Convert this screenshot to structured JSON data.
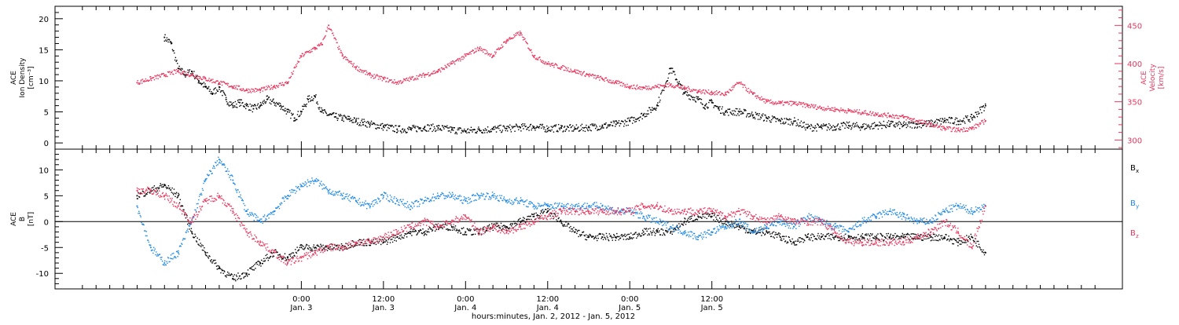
{
  "chart_data": [
    {
      "type": "scatter",
      "panel": "top",
      "left_ylabel_lines": [
        "ACE",
        "Ion Density",
        "[cm⁻³]"
      ],
      "right_ylabel_lines": [
        "ACE",
        "Velocity",
        "[km/s]"
      ],
      "ylim_left": [
        -1,
        22
      ],
      "ylim_right": [
        288,
        475
      ],
      "yticks_left": [
        0,
        5,
        10,
        15,
        20
      ],
      "yticks_right": [
        300,
        350,
        400,
        450
      ],
      "colors": {
        "density": "#000000",
        "velocity": "#e8365d"
      },
      "series": [
        {
          "axis": "left",
          "color": "#000000",
          "x": [
            -20,
            -19,
            -18,
            -17,
            -16,
            -15,
            -14,
            -13,
            -12,
            -11,
            -10,
            -9,
            -8,
            -7,
            -6,
            -5,
            -4,
            -3,
            -2,
            -1,
            0,
            1,
            2,
            3,
            4,
            5,
            6,
            7,
            8,
            9,
            10,
            12,
            14,
            16,
            18,
            20,
            22,
            24,
            26,
            28,
            30,
            32,
            34,
            36,
            38,
            40,
            42,
            44,
            46,
            48,
            50,
            52,
            54,
            56,
            58,
            59,
            60,
            61,
            62,
            64,
            66,
            68,
            70,
            72,
            74,
            76,
            78,
            80,
            82,
            84,
            86,
            88,
            90,
            92,
            94,
            96,
            98,
            100
          ],
          "y": [
            17,
            16,
            12,
            11,
            11.5,
            10,
            9,
            8,
            9,
            7,
            6,
            6.5,
            6,
            5.5,
            6,
            7,
            6.5,
            6,
            5,
            4,
            5,
            7,
            7.5,
            5,
            4.5,
            4.2,
            4.0,
            3.8,
            3.5,
            3.3,
            3.0,
            2.6,
            2.2,
            2.2,
            2.5,
            2.4,
            2.1,
            1.9,
            2.1,
            2.2,
            2.3,
            2.5,
            2.6,
            2.3,
            2.4,
            2.3,
            2.5,
            2.7,
            3.0,
            3.5,
            4.5,
            6.0,
            12.0,
            8.0,
            7.0,
            6.0,
            6.5,
            5.5,
            5.0,
            5.0,
            4.5,
            4.0,
            3.5,
            3.5,
            2.5,
            2.5,
            2.6,
            2.8,
            2.6,
            2.8,
            3.0,
            2.8,
            3.0,
            3.1,
            3.6,
            3.5,
            4.0,
            6.0
          ]
        },
        {
          "axis": "right",
          "color": "#e8365d",
          "x": [
            -24,
            -22,
            -20,
            -18,
            -16,
            -14,
            -12,
            -10,
            -8,
            -6,
            -4,
            -2,
            0,
            2,
            3,
            4,
            6,
            8,
            10,
            12,
            14,
            16,
            18,
            20,
            22,
            24,
            26,
            28,
            30,
            32,
            34,
            36,
            38,
            40,
            42,
            44,
            46,
            48,
            50,
            52,
            54,
            56,
            58,
            60,
            62,
            64,
            66,
            68,
            70,
            72,
            74,
            76,
            78,
            80,
            82,
            84,
            86,
            88,
            90,
            92,
            94,
            96,
            98,
            100
          ],
          "y": [
            375,
            380,
            385,
            390,
            385,
            380,
            375,
            370,
            365,
            365,
            370,
            375,
            410,
            420,
            425,
            450,
            410,
            395,
            385,
            380,
            375,
            380,
            385,
            390,
            400,
            410,
            420,
            410,
            430,
            440,
            410,
            400,
            395,
            390,
            385,
            380,
            375,
            370,
            368,
            370,
            372,
            368,
            364,
            362,
            360,
            375,
            360,
            350,
            348,
            348,
            345,
            342,
            340,
            338,
            336,
            334,
            332,
            330,
            325,
            320,
            315,
            313,
            315,
            325
          ]
        }
      ]
    },
    {
      "type": "scatter",
      "panel": "bottom",
      "ylabel_lines": [
        "ACE",
        "B",
        "[nT]"
      ],
      "ylim": [
        -13,
        14
      ],
      "yticks": [
        -10,
        -5,
        0,
        5,
        10
      ],
      "zero_line": true,
      "legend_placement": "right",
      "series": [
        {
          "name": "Bx",
          "label_main": "B",
          "label_sub": "x",
          "color": "#000000",
          "x": [
            -24,
            -22,
            -20,
            -18,
            -16,
            -14,
            -12,
            -10,
            -8,
            -6,
            -4,
            -2,
            0,
            2,
            4,
            6,
            8,
            10,
            12,
            14,
            16,
            18,
            20,
            22,
            24,
            26,
            28,
            30,
            32,
            34,
            36,
            38,
            40,
            42,
            44,
            46,
            48,
            50,
            52,
            54,
            56,
            58,
            60,
            62,
            64,
            66,
            68,
            70,
            72,
            74,
            76,
            78,
            80,
            82,
            84,
            86,
            88,
            90,
            92,
            94,
            96,
            98,
            100
          ],
          "y": [
            5,
            6,
            7,
            5,
            -2,
            -6,
            -9,
            -11,
            -10,
            -8,
            -6,
            -7,
            -5,
            -5,
            -5,
            -5,
            -4,
            -4,
            -4,
            -3,
            -2,
            -2,
            -1,
            -1,
            -2,
            -2,
            -1,
            -1,
            0,
            1,
            2,
            0,
            -2,
            -3,
            -3,
            -3,
            -3,
            -2,
            -2,
            -2,
            0,
            1,
            1,
            0,
            -1,
            -2,
            -2,
            -3,
            -4,
            -3,
            -3,
            -3,
            -3,
            -3,
            -3,
            -3,
            -3,
            -3,
            -3,
            -3,
            -4,
            -3,
            -6
          ]
        },
        {
          "name": "By",
          "label_main": "B",
          "label_sub": "y",
          "color": "#1e88e5",
          "x": [
            -24,
            -22,
            -20,
            -18,
            -16,
            -14,
            -12,
            -10,
            -8,
            -6,
            -4,
            -2,
            0,
            2,
            4,
            6,
            8,
            10,
            12,
            14,
            16,
            18,
            20,
            22,
            24,
            26,
            28,
            30,
            32,
            34,
            36,
            38,
            40,
            42,
            44,
            46,
            48,
            50,
            52,
            54,
            56,
            58,
            60,
            62,
            64,
            66,
            68,
            70,
            72,
            74,
            76,
            78,
            80,
            82,
            84,
            86,
            88,
            90,
            92,
            94,
            96,
            98,
            100
          ],
          "y": [
            3,
            -5,
            -8,
            -6,
            0,
            8,
            12,
            8,
            2,
            0,
            2,
            5,
            7,
            8,
            6,
            5,
            4,
            3,
            5,
            4,
            3,
            4,
            5,
            5,
            4,
            5,
            5,
            4,
            4,
            3,
            3,
            3,
            3,
            3,
            3,
            2,
            2,
            1,
            0,
            -1,
            -2,
            -3,
            -2,
            -1,
            0,
            -2,
            -1,
            0,
            -1,
            1,
            0,
            -1,
            -2,
            0,
            1,
            2,
            1,
            0,
            0,
            2,
            3,
            2,
            3
          ]
        },
        {
          "name": "Bz",
          "label_main": "B",
          "label_sub": "z",
          "color": "#e8365d",
          "x": [
            -24,
            -22,
            -20,
            -18,
            -16,
            -14,
            -12,
            -10,
            -8,
            -6,
            -4,
            -2,
            0,
            2,
            4,
            6,
            8,
            10,
            12,
            14,
            16,
            18,
            20,
            22,
            24,
            26,
            28,
            30,
            32,
            34,
            36,
            38,
            40,
            42,
            44,
            46,
            48,
            50,
            52,
            54,
            56,
            58,
            60,
            62,
            64,
            66,
            68,
            70,
            72,
            74,
            76,
            78,
            80,
            82,
            84,
            86,
            88,
            90,
            92,
            94,
            96,
            98,
            100
          ],
          "y": [
            6,
            6,
            5,
            3,
            0,
            4,
            5,
            2,
            -2,
            -4,
            -6,
            -8,
            -7,
            -6,
            -5,
            -5,
            -4,
            -4,
            -3,
            -2,
            -1,
            0,
            -1,
            0,
            1,
            -2,
            -1,
            -2,
            -1,
            0,
            1,
            2,
            2,
            2,
            2,
            2,
            2,
            3,
            3,
            2,
            2,
            2,
            2,
            1,
            2,
            1,
            0,
            1,
            0,
            0,
            0,
            -2,
            -4,
            -4,
            -4,
            -4,
            -4,
            -3,
            -2,
            0,
            -2,
            -5,
            3
          ]
        }
      ]
    }
  ],
  "x_axis": {
    "tick_hours": [
      0,
      12,
      24,
      36,
      48,
      60
    ],
    "tick_labels": [
      {
        "time": "0:00",
        "date": "Jan. 3"
      },
      {
        "time": "12:00",
        "date": "Jan. 3"
      },
      {
        "time": "0:00",
        "date": "Jan. 4"
      },
      {
        "time": "12:00",
        "date": "Jan. 4"
      },
      {
        "time": "0:00",
        "date": "Jan. 5"
      },
      {
        "time": "12:00",
        "date": "Jan. 5"
      }
    ],
    "title": "hours:minutes, Jan. 2, 2012 - Jan. 5, 2012"
  }
}
